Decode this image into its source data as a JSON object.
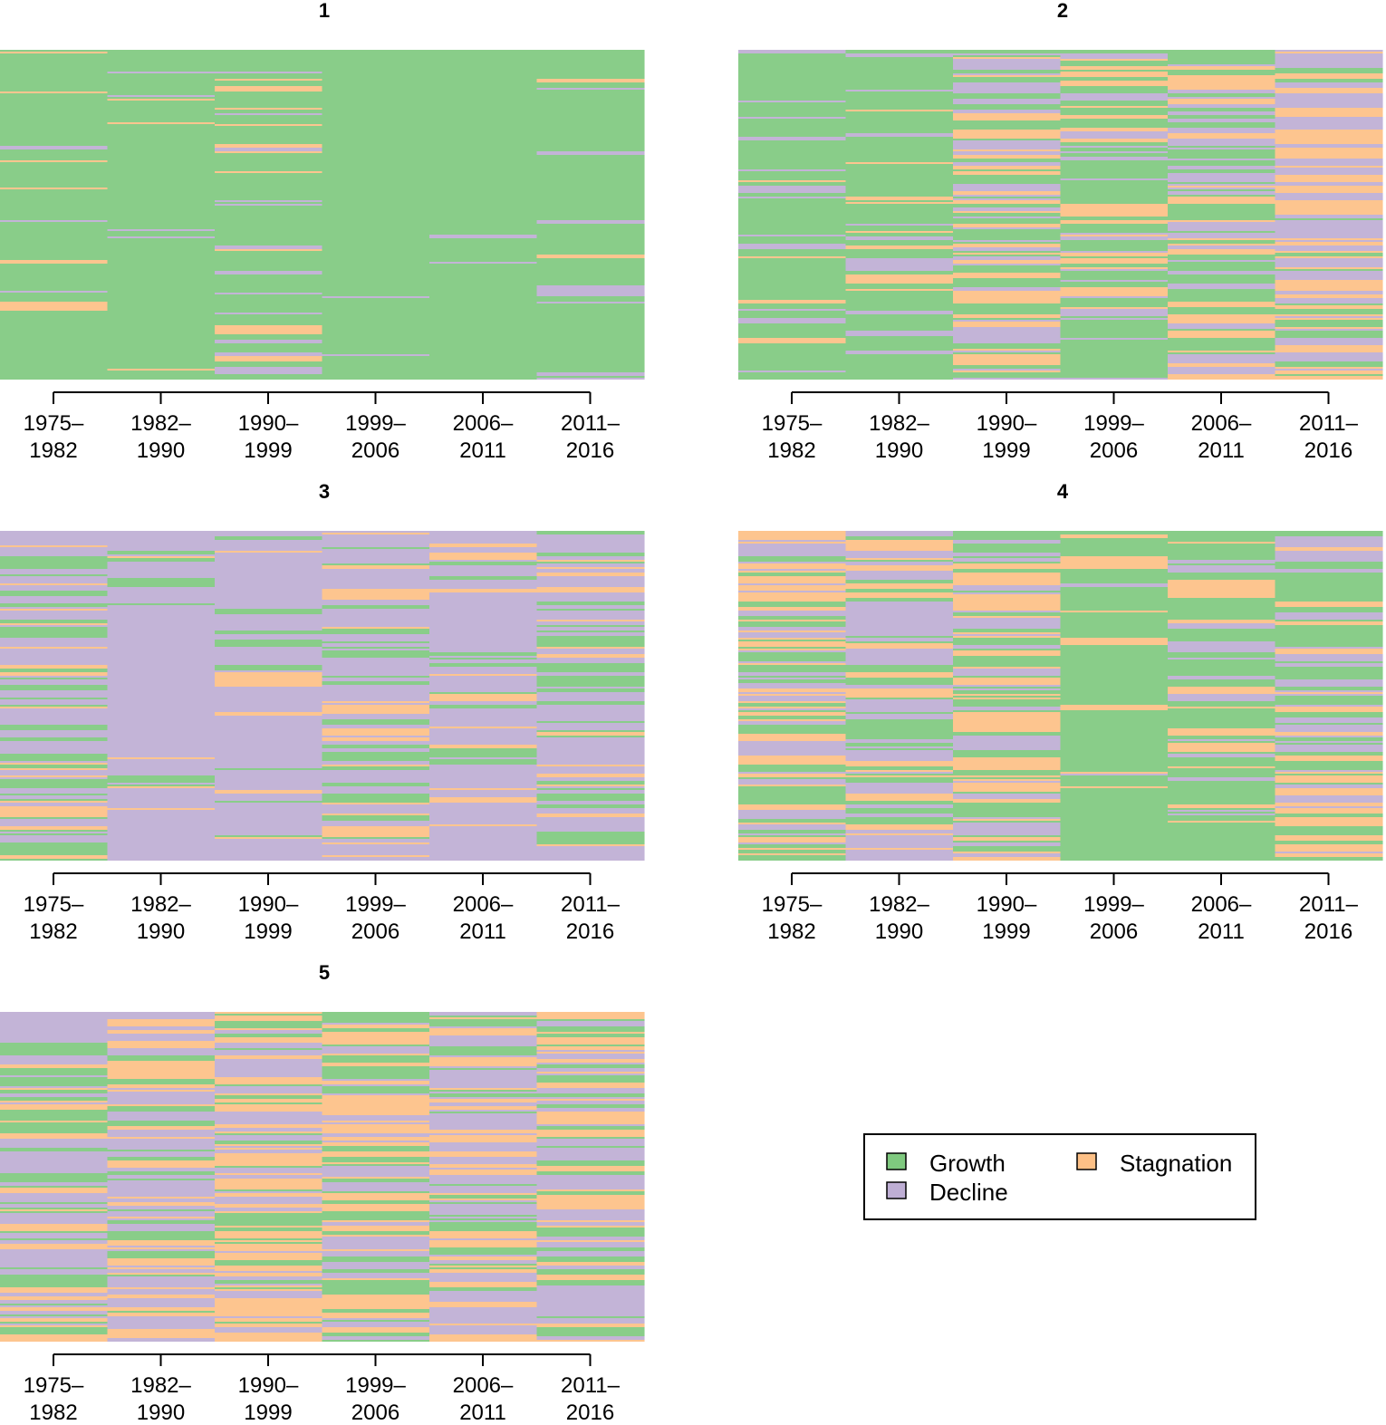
{
  "chart_data": {
    "type": "heatmap",
    "description_of_encoding": "sequence index plot: each thin horizontal line is one unit, colored by state in each period",
    "periods": [
      "1975–1982",
      "1982–1990",
      "1990–1999",
      "1999–2006",
      "2006–2011",
      "2011–2016"
    ],
    "period_labels": [
      [
        "1975–",
        "1982"
      ],
      [
        "1982–",
        "1990"
      ],
      [
        "1990–",
        "1999"
      ],
      [
        "1999–",
        "2006"
      ],
      [
        "2006–",
        "2011"
      ],
      [
        "2011–",
        "2016"
      ]
    ],
    "states": [
      {
        "name": "Growth",
        "color": "#7fc97f"
      },
      {
        "name": "Decline",
        "color": "#beaed4"
      },
      {
        "name": "Stagnation",
        "color": "#fdc086"
      }
    ],
    "legend": {
      "position": "bottom-right",
      "entries": [
        {
          "label": "Growth",
          "color": "#7fc97f"
        },
        {
          "label": "Stagnation",
          "color": "#fdc086"
        },
        {
          "label": "Decline",
          "color": "#beaed4"
        }
      ]
    },
    "clusters": [
      {
        "title": "1",
        "proportions": [
          {
            "Growth": 0.93,
            "Decline": 0.04,
            "Stagnation": 0.03
          },
          {
            "Growth": 0.95,
            "Decline": 0.03,
            "Stagnation": 0.02
          },
          {
            "Growth": 0.82,
            "Decline": 0.08,
            "Stagnation": 0.1
          },
          {
            "Growth": 0.96,
            "Decline": 0.02,
            "Stagnation": 0.02
          },
          {
            "Growth": 0.97,
            "Decline": 0.02,
            "Stagnation": 0.01
          },
          {
            "Growth": 0.88,
            "Decline": 0.09,
            "Stagnation": 0.03
          }
        ]
      },
      {
        "title": "2",
        "proportions": [
          {
            "Growth": 0.85,
            "Decline": 0.1,
            "Stagnation": 0.05
          },
          {
            "Growth": 0.8,
            "Decline": 0.12,
            "Stagnation": 0.08
          },
          {
            "Growth": 0.45,
            "Decline": 0.3,
            "Stagnation": 0.25
          },
          {
            "Growth": 0.62,
            "Decline": 0.2,
            "Stagnation": 0.18
          },
          {
            "Growth": 0.4,
            "Decline": 0.38,
            "Stagnation": 0.22
          },
          {
            "Growth": 0.15,
            "Decline": 0.45,
            "Stagnation": 0.4
          }
        ]
      },
      {
        "title": "3",
        "proportions": [
          {
            "Growth": 0.3,
            "Decline": 0.55,
            "Stagnation": 0.15
          },
          {
            "Growth": 0.05,
            "Decline": 0.9,
            "Stagnation": 0.05
          },
          {
            "Growth": 0.06,
            "Decline": 0.88,
            "Stagnation": 0.06
          },
          {
            "Growth": 0.22,
            "Decline": 0.58,
            "Stagnation": 0.2
          },
          {
            "Growth": 0.07,
            "Decline": 0.86,
            "Stagnation": 0.07
          },
          {
            "Growth": 0.25,
            "Decline": 0.6,
            "Stagnation": 0.15
          }
        ]
      },
      {
        "title": "4",
        "proportions": [
          {
            "Growth": 0.3,
            "Decline": 0.35,
            "Stagnation": 0.35
          },
          {
            "Growth": 0.25,
            "Decline": 0.5,
            "Stagnation": 0.25
          },
          {
            "Growth": 0.4,
            "Decline": 0.3,
            "Stagnation": 0.3
          },
          {
            "Growth": 0.88,
            "Decline": 0.04,
            "Stagnation": 0.08
          },
          {
            "Growth": 0.75,
            "Decline": 0.12,
            "Stagnation": 0.13
          },
          {
            "Growth": 0.35,
            "Decline": 0.35,
            "Stagnation": 0.3
          }
        ]
      },
      {
        "title": "5",
        "proportions": [
          {
            "Growth": 0.35,
            "Decline": 0.45,
            "Stagnation": 0.2
          },
          {
            "Growth": 0.2,
            "Decline": 0.4,
            "Stagnation": 0.4
          },
          {
            "Growth": 0.25,
            "Decline": 0.3,
            "Stagnation": 0.45
          },
          {
            "Growth": 0.35,
            "Decline": 0.35,
            "Stagnation": 0.3
          },
          {
            "Growth": 0.25,
            "Decline": 0.5,
            "Stagnation": 0.25
          },
          {
            "Growth": 0.25,
            "Decline": 0.5,
            "Stagnation": 0.25
          }
        ]
      }
    ]
  }
}
